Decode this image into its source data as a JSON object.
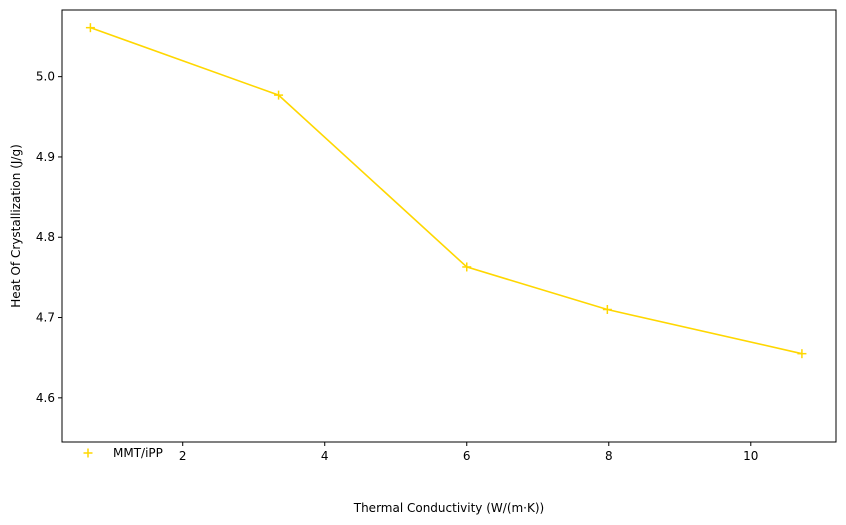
{
  "chart_data": {
    "type": "line",
    "title": "",
    "xlabel": "Thermal Conductivity (W/(m·K))",
    "ylabel": "Heat Of Crystallization (J/g)",
    "xlim": [
      0.3,
      11.2
    ],
    "ylim": [
      4.545,
      5.083
    ],
    "xticks": [
      2,
      4,
      6,
      8,
      10
    ],
    "yticks": [
      4.6,
      4.7,
      4.8,
      4.9,
      5.0
    ],
    "xtick_labels": [
      "2",
      "4",
      "6",
      "8",
      "10"
    ],
    "ytick_labels": [
      "4.6",
      "4.7",
      "4.8",
      "4.9",
      "5.0"
    ],
    "grid": false,
    "legend_position": "lower-left",
    "series": [
      {
        "name": "MMT/iPP",
        "color": "#FFD700",
        "marker": "plus",
        "x": [
          0.7,
          3.35,
          6.0,
          7.98,
          10.72
        ],
        "y": [
          5.061,
          4.977,
          4.763,
          4.71,
          4.655
        ]
      }
    ]
  }
}
